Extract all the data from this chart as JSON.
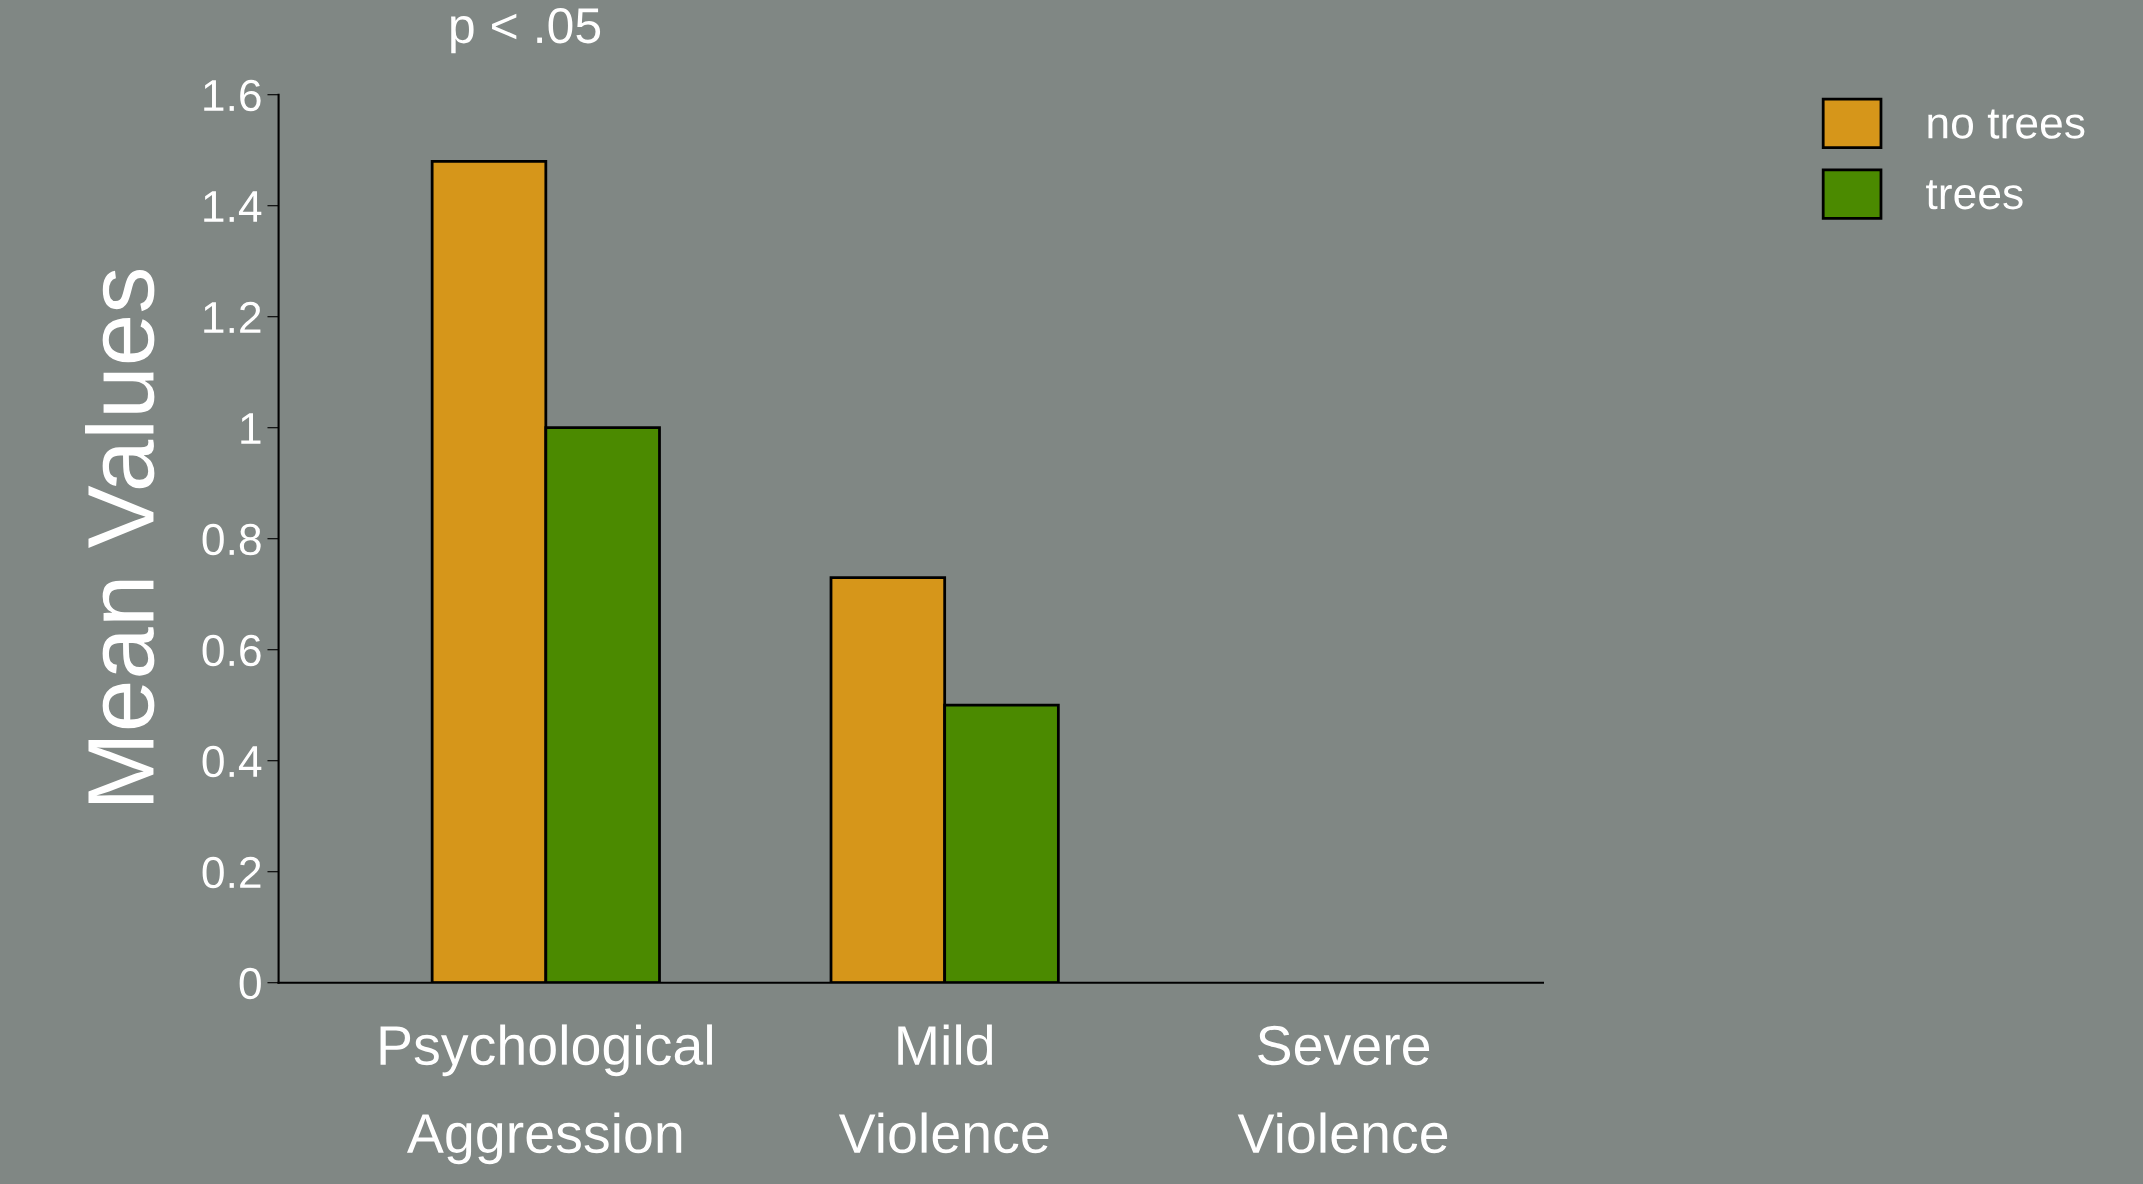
{
  "chart_data": {
    "type": "bar",
    "ylabel": "Mean Values",
    "categories": [
      "Psychological\nAggression",
      "Mild\nViolence",
      "Severe\nViolence"
    ],
    "series": [
      {
        "name": "no trees",
        "color": "#d6961a",
        "values": [
          1.48,
          0.73,
          null
        ]
      },
      {
        "name": "trees",
        "color": "#4b8a00",
        "values": [
          1.0,
          0.5,
          null
        ]
      }
    ],
    "ylim": [
      0,
      1.6
    ],
    "yticks": [
      0,
      0.2,
      0.4,
      0.6,
      0.8,
      1,
      1.2,
      1.4,
      1.6
    ],
    "grid": false,
    "legend": "top right",
    "annotations": [
      "p < .05"
    ]
  }
}
